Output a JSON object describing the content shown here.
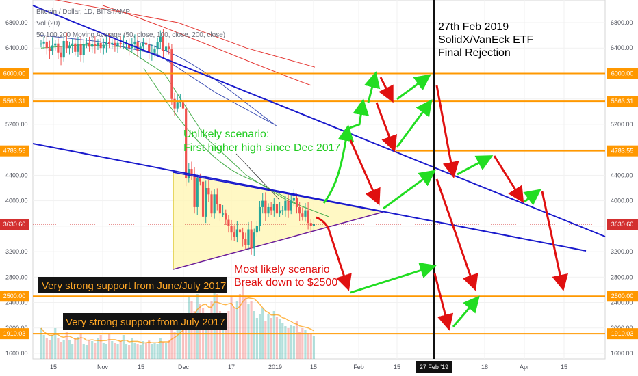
{
  "header": {
    "symbol_line": "Bitcoin / Dollar, 1D, BITSTAMP",
    "vol_line": "Vol (20)",
    "ma_line": "50,100,200 Moving Average (50, close, 100, close, 200, close)"
  },
  "chart_data": {
    "type": "candlestick",
    "y_axis": {
      "range": [
        1500,
        6950
      ],
      "ticks": [
        1600,
        2000,
        2400,
        2800,
        3200,
        3600,
        4000,
        4400,
        4800,
        5200,
        5600,
        6000,
        6400,
        6800
      ],
      "tick_labels": [
        "1600.00",
        "2000.00",
        "2400.00",
        "2800.00",
        "3200.00",
        "3600.00",
        "4000.00",
        "4400.00",
        "4800.00",
        "5200.00",
        "5600.00",
        "6000.00",
        "6400.00",
        "6800.00"
      ]
    },
    "x_axis": {
      "tick_labels": [
        "15",
        "Nov",
        "15",
        "Dec",
        "17",
        "2019",
        "15",
        "Feb",
        "15",
        "27 Feb '19",
        "18",
        "Apr",
        "15"
      ]
    },
    "price_tags": {
      "left": [
        {
          "value": 6000,
          "label": "6000.00",
          "color": "#ff9800"
        },
        {
          "value": 5563.31,
          "label": "5563.31",
          "color": "#ff9800"
        },
        {
          "value": 4783.55,
          "label": "4783.55",
          "color": "#ff9800"
        },
        {
          "value": 3630.6,
          "label": "3630.60",
          "color": "#d32f2f"
        },
        {
          "value": 2500,
          "label": "2500.00",
          "color": "#ff9800"
        },
        {
          "value": 1910.03,
          "label": "1910.03",
          "color": "#ff9800"
        }
      ],
      "right": [
        {
          "value": 6000,
          "label": "6000.00",
          "color": "#ff9800"
        },
        {
          "value": 5563.31,
          "label": "5563.31",
          "color": "#ff9800"
        },
        {
          "value": 4783.55,
          "label": "4783.55",
          "color": "#ff9800"
        },
        {
          "value": 3630.6,
          "label": "3630.60",
          "color": "#d32f2f"
        },
        {
          "value": 2500,
          "label": "2500.00",
          "color": "#ff9800"
        },
        {
          "value": 1910.03,
          "label": "1910.03",
          "color": "#ff9800"
        }
      ]
    },
    "horizontal_levels": [
      6000,
      5563.31,
      4783.55,
      2500,
      1910.03
    ],
    "last_price": 3630.6,
    "closes": [
      6470,
      6500,
      6400,
      6350,
      6440,
      6470,
      6330,
      6250,
      6510,
      6400,
      6440,
      6470,
      6340,
      6460,
      6290,
      6460,
      6480,
      6420,
      6460,
      6430,
      6480,
      6400,
      6450,
      6490,
      6460,
      6480,
      6440,
      6480,
      6460,
      6470,
      6470,
      6400,
      6460,
      6500,
      6350,
      6420,
      6480,
      6450,
      6320,
      6330,
      6380,
      6490,
      6580,
      6350,
      6420,
      6380,
      5600,
      5450,
      5550,
      5550,
      5450,
      4350,
      4500,
      4400,
      3900,
      4350,
      4300,
      3750,
      4200,
      4100,
      3800,
      4100,
      3950,
      3800,
      3800,
      3700,
      3600,
      3500,
      3430,
      3550,
      3500,
      3400,
      3300,
      3550,
      3250,
      3500,
      3600,
      3900,
      4000,
      3800,
      3900,
      3850,
      3950,
      3800,
      3850,
      3850,
      4000,
      3850,
      4000,
      4050,
      3900,
      3800,
      3750,
      3850,
      3650,
      3600,
      3630.6
    ],
    "volume_heights": [
      45,
      35,
      30,
      28,
      35,
      45,
      30,
      25,
      28,
      40,
      28,
      22,
      30,
      32,
      38,
      22,
      20,
      28,
      26,
      24,
      30,
      35,
      24,
      22,
      36,
      26,
      24,
      22,
      26,
      35,
      22,
      20,
      30,
      24,
      22,
      20,
      26,
      24,
      28,
      22,
      24,
      22,
      30,
      25,
      24,
      28,
      50,
      40,
      45,
      55,
      52,
      60,
      90,
      85,
      70,
      95,
      80,
      75,
      65,
      60,
      85,
      120,
      95,
      70,
      65,
      60,
      70,
      90,
      75,
      85,
      95,
      110,
      90,
      80,
      85,
      70,
      60,
      65,
      75,
      55,
      65,
      60,
      70,
      62,
      58,
      52,
      48,
      45,
      50,
      48,
      55,
      40,
      45,
      42,
      38,
      36,
      33
    ],
    "ma_lines": {
      "ma50": [
        [
          6400,
          6370
        ],
        [
          6450,
          6450
        ],
        [
          6420,
          6520
        ],
        [
          6000,
          6550
        ],
        [
          5000,
          6600
        ],
        [
          4400,
          6620
        ],
        [
          4000,
          6640
        ],
        [
          3750,
          6650
        ]
      ],
      "ma100": [
        [
          6600,
          6500
        ],
        [
          6500,
          6560
        ],
        [
          6300,
          6620
        ],
        [
          5700,
          6650
        ],
        [
          5200,
          6680
        ]
      ],
      "ma200": [
        [
          7200,
          6900
        ],
        [
          7000,
          6980
        ],
        [
          6800,
          7000
        ],
        [
          6400,
          7020
        ],
        [
          6100,
          7040
        ]
      ]
    }
  },
  "annotations": {
    "event_date_lines": [
      "27th Feb 2019",
      "SolidX/VanEck ETF",
      "Final Rejection"
    ],
    "unlikely_lines": [
      "Unlikely scenario:",
      "First higher high since Dec 2017"
    ],
    "likely_lines": [
      "Most likely scenario",
      "Break down to $2500"
    ],
    "support_june_july": "Very strong support from June/July 2017",
    "support_july": "Very strong support from July 2017",
    "date_tag": "27 Feb '19"
  },
  "colors": {
    "bull": "#26a69a",
    "bear": "#ef5350",
    "orange": "#ff9800",
    "blue_line": "#1a1acc",
    "green_arrow": "#22dd22",
    "red_arrow": "#e01010",
    "ma50": "#4caf50",
    "ma100": "#3f51b5",
    "ma200": "#e53935"
  }
}
